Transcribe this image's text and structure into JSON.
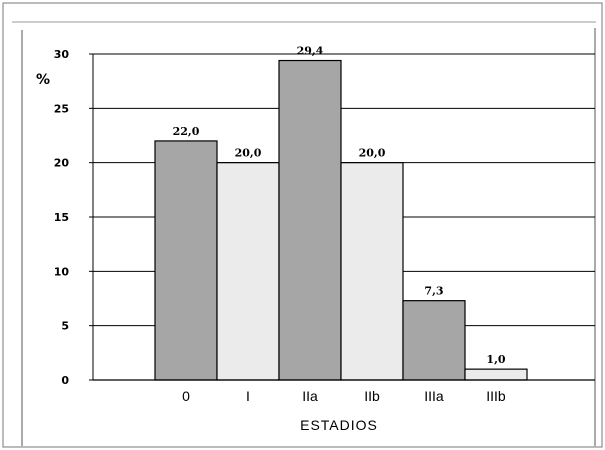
{
  "chart_data": {
    "type": "bar",
    "categories": [
      "0",
      "I",
      "IIa",
      "IIb",
      "IIIa",
      "IIIb"
    ],
    "values": [
      22.0,
      20.0,
      29.4,
      20.0,
      7.3,
      1.0
    ],
    "value_labels": [
      "22,0",
      "20,0",
      "29,4",
      "20,0",
      "7,3",
      "1,0"
    ],
    "bar_colors": [
      "#a6a6a6",
      "#ebebeb",
      "#a6a6a6",
      "#ebebeb",
      "#a6a6a6",
      "#ebebeb"
    ],
    "title": "",
    "xlabel": "ESTADIOS",
    "ylabel": "%",
    "ylim": [
      0,
      30
    ],
    "yticks": [
      0,
      5,
      10,
      15,
      20,
      25,
      30
    ],
    "grid": true,
    "legend": "none"
  }
}
